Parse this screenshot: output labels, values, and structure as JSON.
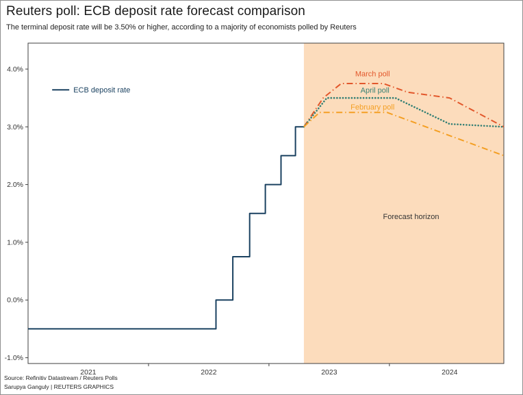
{
  "header": {
    "title": "Reuters poll: ECB deposit rate forecast comparison",
    "subtitle": "The terminal deposit rate will be 3.50% or higher, according to a majority of economists polled by Reuters"
  },
  "footer": {
    "source": "Source: Refinitiv Datastream / Reuters Polls",
    "credit": "Sarupya Ganguly | REUTERS GRAPHICS"
  },
  "chart_data": {
    "type": "line",
    "title": "Reuters poll: ECB deposit rate forecast comparison",
    "subtitle": "The terminal deposit rate will be 3.50% or higher, according to a majority of economists polled by Reuters",
    "x_range": [
      2021.0,
      2024.95
    ],
    "y_range": [
      -1.1,
      4.45
    ],
    "grid": false,
    "y_ticks": [
      -1.0,
      0.0,
      1.0,
      2.0,
      3.0,
      4.0
    ],
    "y_tick_labels": [
      "-1.0%",
      "0.0%",
      "1.0%",
      "2.0%",
      "3.0%",
      "4.0%"
    ],
    "x_tick_positions": [
      2021.5,
      2022.5,
      2023.5,
      2024.5
    ],
    "x_tick_labels": [
      "2021",
      "2022",
      "2023",
      "2024"
    ],
    "x_boundary_ticks": [
      2022,
      2023,
      2024
    ],
    "forecast_region": {
      "start": 2023.29,
      "fill": "#fcdcbc",
      "label": "Forecast horizon"
    },
    "legend": {
      "label": "ECB deposit rate",
      "color": "#1a4160",
      "label_color": "#1a4160",
      "x": 2021.2,
      "y": 3.64,
      "position": "top-left"
    },
    "series": [
      {
        "name": "ECB deposit rate",
        "color": "#1a4160",
        "dash": "solid",
        "width": 2,
        "points": [
          [
            2021.0,
            -0.5
          ],
          [
            2022.56,
            -0.5
          ],
          [
            2022.56,
            0.0
          ],
          [
            2022.7,
            0.0
          ],
          [
            2022.7,
            0.75
          ],
          [
            2022.84,
            0.75
          ],
          [
            2022.84,
            1.5
          ],
          [
            2022.97,
            1.5
          ],
          [
            2022.97,
            2.0
          ],
          [
            2023.1,
            2.0
          ],
          [
            2023.1,
            2.5
          ],
          [
            2023.22,
            2.5
          ],
          [
            2023.22,
            3.0
          ],
          [
            2023.29,
            3.0
          ]
        ]
      },
      {
        "name": "March poll",
        "color": "#e2572b",
        "dash": "dashdot",
        "width": 2,
        "points": [
          [
            2023.29,
            3.0
          ],
          [
            2023.45,
            3.5
          ],
          [
            2023.6,
            3.75
          ],
          [
            2023.95,
            3.75
          ],
          [
            2024.15,
            3.6
          ],
          [
            2024.5,
            3.5
          ],
          [
            2024.95,
            3.0
          ]
        ]
      },
      {
        "name": "April poll",
        "color": "#337f74",
        "dash": "dotted",
        "width": 2.6,
        "points": [
          [
            2023.29,
            3.0
          ],
          [
            2023.48,
            3.5
          ],
          [
            2024.05,
            3.5
          ],
          [
            2024.5,
            3.05
          ],
          [
            2024.95,
            3.0
          ]
        ]
      },
      {
        "name": "February poll",
        "color": "#f49f23",
        "dash": "dashdot",
        "width": 2,
        "points": [
          [
            2023.29,
            3.0
          ],
          [
            2023.42,
            3.25
          ],
          [
            2023.98,
            3.25
          ],
          [
            2024.95,
            2.5
          ]
        ]
      }
    ],
    "annotations": [
      {
        "text": "March poll",
        "x": 2023.86,
        "y": 3.92,
        "color": "#e2572b"
      },
      {
        "text": "April poll",
        "x": 2023.88,
        "y": 3.64,
        "color": "#337f74"
      },
      {
        "text": "February poll",
        "x": 2023.86,
        "y": 3.35,
        "color": "#f49f23"
      },
      {
        "text": "Forecast horizon",
        "x": 2024.18,
        "y": 1.45,
        "color": "#333333"
      }
    ]
  }
}
